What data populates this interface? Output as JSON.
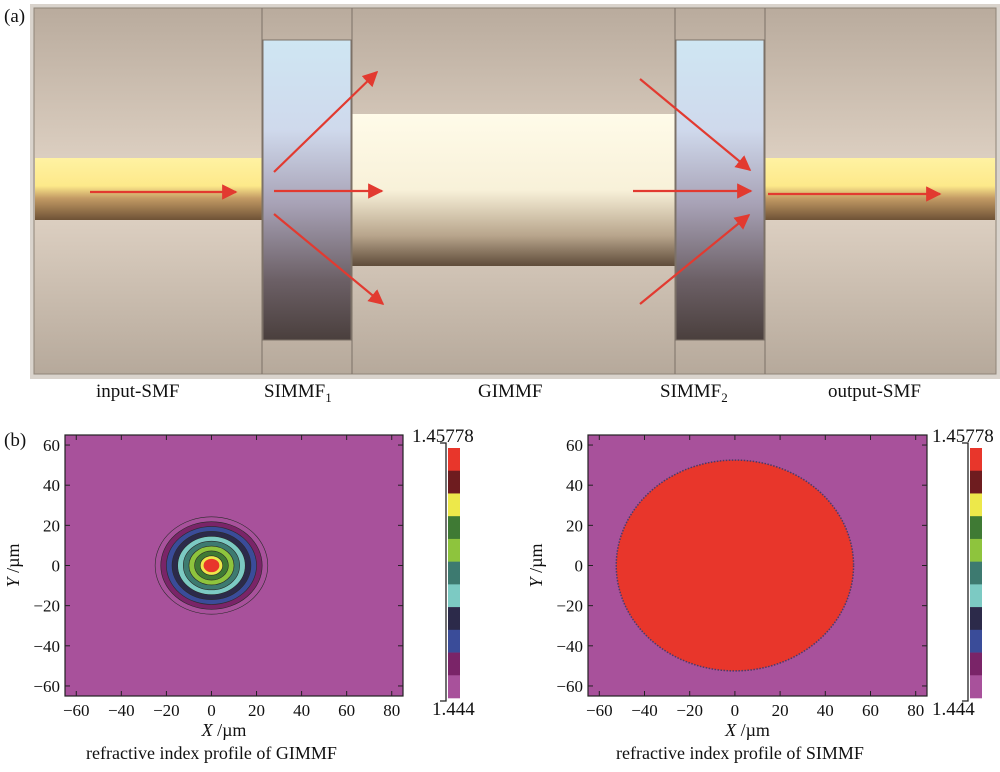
{
  "panel_a": {
    "tag": "(a)",
    "segments": {
      "input": "input-SMF",
      "simmf1": "SIMMF",
      "simmf1_sub": "1",
      "gimmf": "GIMMF",
      "simmf2": "SIMMF",
      "simmf2_sub": "2",
      "output": "output-SMF"
    }
  },
  "panel_b": {
    "tag": "(b)",
    "x_unit": "/µm",
    "y_unit": "/µm",
    "x_var": "X",
    "y_var": "Y",
    "x_ticks": [
      "-60",
      "-40",
      "-20",
      "0",
      "20",
      "40",
      "60",
      "80"
    ],
    "y_ticks": [
      "60",
      "40",
      "20",
      "0",
      "-20",
      "-40",
      "-60"
    ],
    "colorbar_max": "1.45778",
    "colorbar_min": "1.444",
    "colorbar_colors": [
      "#e8362b",
      "#6e1c1f",
      "#ede84a",
      "#3f7a34",
      "#8ec43d",
      "#3d7a70",
      "#7ccac3",
      "#2c2a4a",
      "#3a4c99",
      "#7a2468",
      "#a8519b"
    ],
    "left_caption": "refractive index profile of GIMMF",
    "right_caption": "refractive index profile of SIMMF",
    "background_color": "#a8519b",
    "core_color": "#e8362b"
  },
  "chart_data": [
    {
      "type": "heatmap",
      "title": "refractive index profile of GIMMF",
      "xlabel": "X /µm",
      "ylabel": "Y /µm",
      "xlim": [
        -65,
        85
      ],
      "ylim": [
        -65,
        65
      ],
      "colorbar_range": [
        1.444,
        1.45778
      ],
      "core_center": [
        0,
        0
      ],
      "core_radius": 25,
      "rings": 10
    },
    {
      "type": "heatmap",
      "title": "refractive index profile of SIMMF",
      "xlabel": "X /µm",
      "ylabel": "Y /µm",
      "xlim": [
        -65,
        85
      ],
      "ylim": [
        -65,
        65
      ],
      "colorbar_range": [
        1.444,
        1.45778
      ],
      "core_center": [
        0,
        0
      ],
      "core_radius": 52.5
    }
  ]
}
